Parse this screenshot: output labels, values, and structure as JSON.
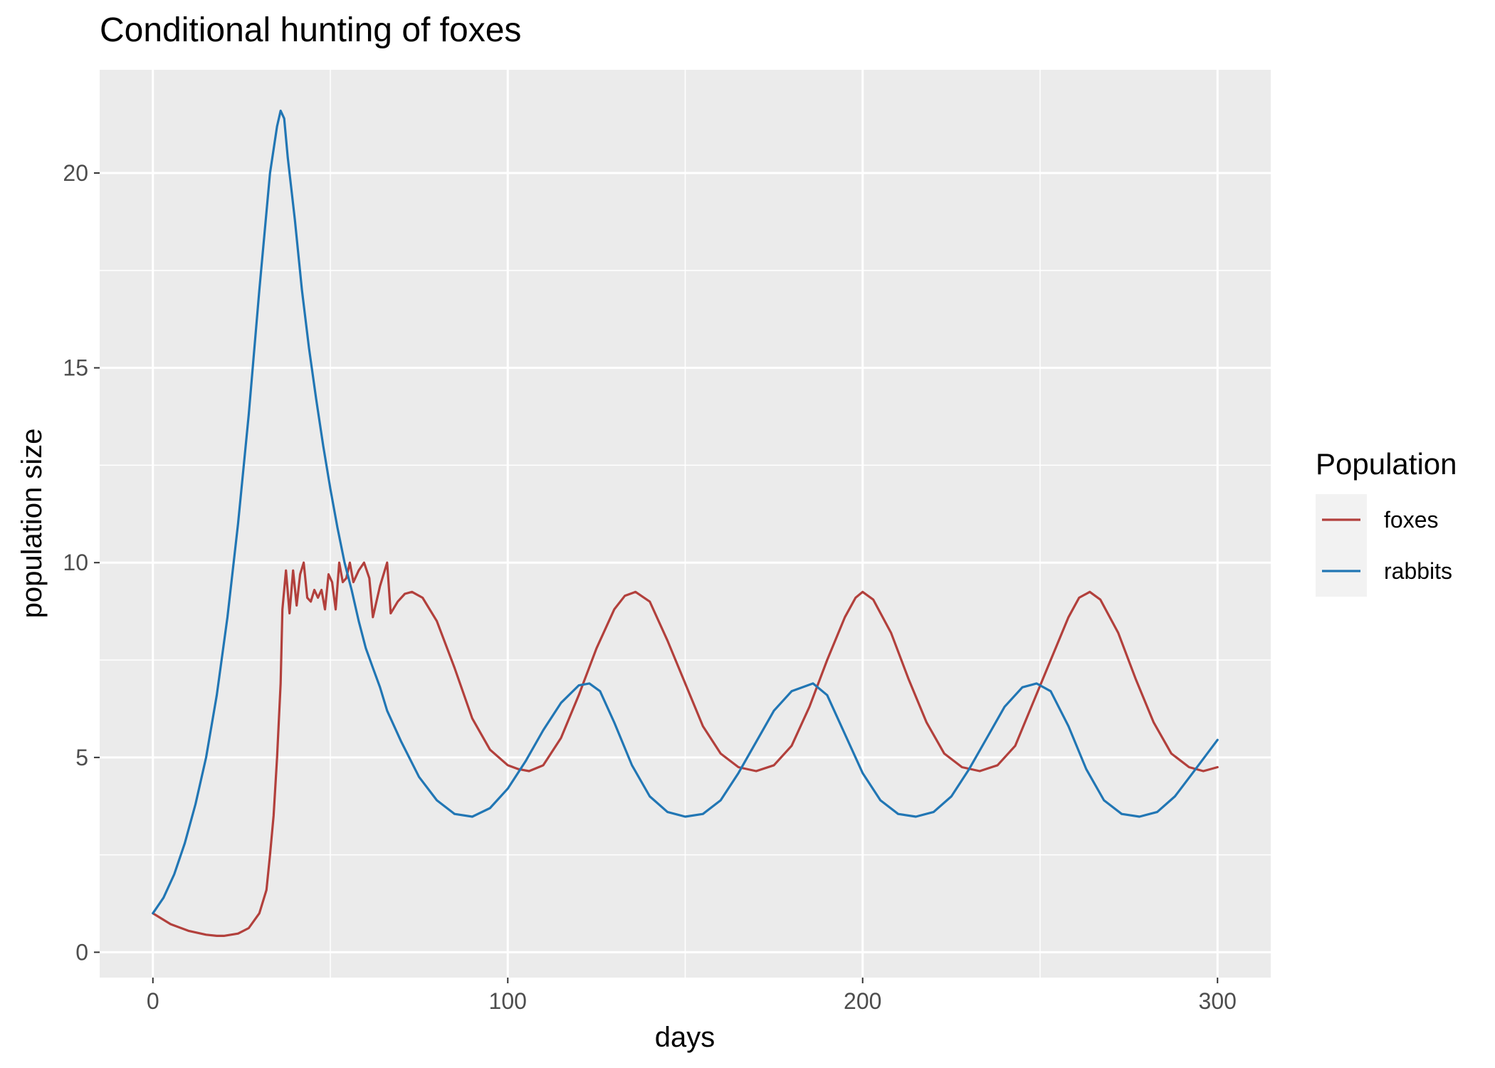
{
  "chart_data": {
    "type": "line",
    "title": "Conditional hunting of foxes",
    "xlabel": "days",
    "ylabel": "population size",
    "xlim": [
      -15,
      315
    ],
    "ylim": [
      -0.65,
      22.65
    ],
    "x_ticks": [
      0,
      100,
      200,
      300
    ],
    "y_ticks": [
      0,
      5,
      10,
      15,
      20
    ],
    "x_tick_labels": [
      "0",
      "100",
      "200",
      "300"
    ],
    "y_tick_labels": [
      "0",
      "5",
      "10",
      "15",
      "20"
    ],
    "grid": true,
    "legend": {
      "title": "Population",
      "position": "right"
    },
    "series": [
      {
        "name": "foxes",
        "color": "#b2403c",
        "points": [
          [
            0,
            1.0
          ],
          [
            5,
            0.72
          ],
          [
            10,
            0.55
          ],
          [
            15,
            0.45
          ],
          [
            18,
            0.42
          ],
          [
            20,
            0.42
          ],
          [
            24,
            0.48
          ],
          [
            27,
            0.62
          ],
          [
            30,
            1.0
          ],
          [
            32,
            1.6
          ],
          [
            33,
            2.5
          ],
          [
            34,
            3.5
          ],
          [
            35,
            5.0
          ],
          [
            36,
            6.9
          ],
          [
            36.5,
            8.8
          ],
          [
            37,
            9.3
          ],
          [
            37.5,
            9.8
          ],
          [
            38.5,
            8.7
          ],
          [
            39.5,
            9.8
          ],
          [
            40.5,
            8.9
          ],
          [
            41.5,
            9.7
          ],
          [
            42.5,
            10.0
          ],
          [
            43.5,
            9.1
          ],
          [
            44.5,
            9.0
          ],
          [
            45.5,
            9.3
          ],
          [
            46.5,
            9.1
          ],
          [
            47.5,
            9.3
          ],
          [
            48.5,
            8.8
          ],
          [
            49.5,
            9.7
          ],
          [
            50.5,
            9.5
          ],
          [
            51.5,
            8.8
          ],
          [
            52.5,
            10.0
          ],
          [
            53.5,
            9.5
          ],
          [
            54.5,
            9.6
          ],
          [
            55.5,
            10.0
          ],
          [
            56.5,
            9.5
          ],
          [
            58,
            9.8
          ],
          [
            59.5,
            10.0
          ],
          [
            61,
            9.6
          ],
          [
            62,
            8.6
          ],
          [
            63,
            9.0
          ],
          [
            64,
            9.4
          ],
          [
            65,
            9.7
          ],
          [
            66,
            10.0
          ],
          [
            67,
            8.7
          ],
          [
            69,
            9.0
          ],
          [
            71,
            9.2
          ],
          [
            73,
            9.25
          ],
          [
            76,
            9.1
          ],
          [
            80,
            8.5
          ],
          [
            85,
            7.3
          ],
          [
            90,
            6.0
          ],
          [
            95,
            5.2
          ],
          [
            100,
            4.8
          ],
          [
            103,
            4.7
          ],
          [
            106,
            4.65
          ],
          [
            110,
            4.8
          ],
          [
            115,
            5.5
          ],
          [
            120,
            6.6
          ],
          [
            125,
            7.8
          ],
          [
            130,
            8.8
          ],
          [
            133,
            9.15
          ],
          [
            136,
            9.25
          ],
          [
            140,
            9.0
          ],
          [
            145,
            8.0
          ],
          [
            150,
            6.9
          ],
          [
            155,
            5.8
          ],
          [
            160,
            5.1
          ],
          [
            165,
            4.75
          ],
          [
            170,
            4.65
          ],
          [
            175,
            4.8
          ],
          [
            180,
            5.3
          ],
          [
            185,
            6.3
          ],
          [
            190,
            7.5
          ],
          [
            195,
            8.6
          ],
          [
            198,
            9.1
          ],
          [
            200,
            9.25
          ],
          [
            203,
            9.05
          ],
          [
            208,
            8.2
          ],
          [
            213,
            7.0
          ],
          [
            218,
            5.9
          ],
          [
            223,
            5.1
          ],
          [
            228,
            4.75
          ],
          [
            233,
            4.65
          ],
          [
            238,
            4.8
          ],
          [
            243,
            5.3
          ],
          [
            248,
            6.4
          ],
          [
            253,
            7.5
          ],
          [
            258,
            8.6
          ],
          [
            261,
            9.1
          ],
          [
            264,
            9.25
          ],
          [
            267,
            9.05
          ],
          [
            272,
            8.2
          ],
          [
            277,
            7.0
          ],
          [
            282,
            5.9
          ],
          [
            287,
            5.1
          ],
          [
            292,
            4.75
          ],
          [
            296,
            4.65
          ],
          [
            300,
            4.75
          ]
        ]
      },
      {
        "name": "rabbits",
        "color": "#2176b4",
        "points": [
          [
            0,
            1.0
          ],
          [
            3,
            1.4
          ],
          [
            6,
            2.0
          ],
          [
            9,
            2.8
          ],
          [
            12,
            3.8
          ],
          [
            15,
            5.0
          ],
          [
            18,
            6.6
          ],
          [
            21,
            8.6
          ],
          [
            24,
            11.0
          ],
          [
            27,
            13.8
          ],
          [
            30,
            17.0
          ],
          [
            33,
            20.0
          ],
          [
            35,
            21.2
          ],
          [
            36,
            21.6
          ],
          [
            37,
            21.4
          ],
          [
            38,
            20.4
          ],
          [
            40,
            18.8
          ],
          [
            42,
            17.0
          ],
          [
            44,
            15.5
          ],
          [
            46,
            14.2
          ],
          [
            48,
            13.0
          ],
          [
            50,
            11.9
          ],
          [
            52,
            10.9
          ],
          [
            54,
            10.0
          ],
          [
            56,
            9.3
          ],
          [
            58,
            8.5
          ],
          [
            60,
            7.8
          ],
          [
            62,
            7.3
          ],
          [
            64,
            6.8
          ],
          [
            66,
            6.2
          ],
          [
            70,
            5.4
          ],
          [
            75,
            4.5
          ],
          [
            80,
            3.9
          ],
          [
            85,
            3.55
          ],
          [
            90,
            3.48
          ],
          [
            95,
            3.7
          ],
          [
            100,
            4.2
          ],
          [
            105,
            4.9
          ],
          [
            110,
            5.7
          ],
          [
            115,
            6.4
          ],
          [
            120,
            6.85
          ],
          [
            123,
            6.9
          ],
          [
            126,
            6.7
          ],
          [
            130,
            5.9
          ],
          [
            135,
            4.8
          ],
          [
            140,
            4.0
          ],
          [
            145,
            3.6
          ],
          [
            150,
            3.48
          ],
          [
            155,
            3.55
          ],
          [
            160,
            3.9
          ],
          [
            165,
            4.6
          ],
          [
            170,
            5.4
          ],
          [
            175,
            6.2
          ],
          [
            180,
            6.7
          ],
          [
            186,
            6.9
          ],
          [
            190,
            6.6
          ],
          [
            195,
            5.6
          ],
          [
            200,
            4.6
          ],
          [
            205,
            3.9
          ],
          [
            210,
            3.55
          ],
          [
            215,
            3.48
          ],
          [
            220,
            3.6
          ],
          [
            225,
            4.0
          ],
          [
            230,
            4.7
          ],
          [
            235,
            5.5
          ],
          [
            240,
            6.3
          ],
          [
            245,
            6.8
          ],
          [
            249,
            6.9
          ],
          [
            253,
            6.7
          ],
          [
            258,
            5.8
          ],
          [
            263,
            4.7
          ],
          [
            268,
            3.9
          ],
          [
            273,
            3.55
          ],
          [
            278,
            3.48
          ],
          [
            283,
            3.6
          ],
          [
            288,
            4.0
          ],
          [
            293,
            4.6
          ],
          [
            300,
            5.45
          ]
        ]
      }
    ]
  }
}
